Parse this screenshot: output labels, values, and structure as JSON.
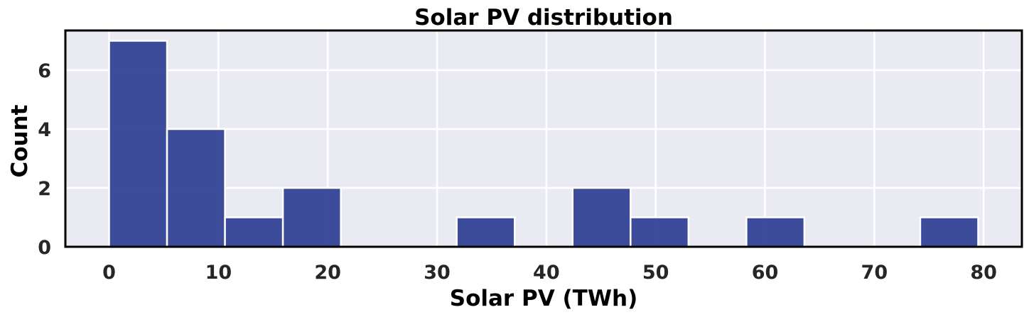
{
  "chart_data": {
    "type": "bar",
    "title": "Solar PV distribution",
    "xlabel": "Solar PV (TWh)",
    "ylabel": "Count",
    "xlim": [
      -4,
      83.5
    ],
    "ylim": [
      0,
      7.35
    ],
    "xticks": [
      0,
      10,
      20,
      30,
      40,
      50,
      60,
      70,
      80
    ],
    "yticks": [
      0,
      2,
      4,
      6
    ],
    "bins": [
      {
        "start": 0.0,
        "end": 5.3,
        "count": 7
      },
      {
        "start": 5.3,
        "end": 10.6,
        "count": 4
      },
      {
        "start": 10.6,
        "end": 15.9,
        "count": 1
      },
      {
        "start": 15.9,
        "end": 21.2,
        "count": 2
      },
      {
        "start": 21.2,
        "end": 26.5,
        "count": 0
      },
      {
        "start": 26.5,
        "end": 31.8,
        "count": 0
      },
      {
        "start": 31.8,
        "end": 37.1,
        "count": 1
      },
      {
        "start": 37.1,
        "end": 42.4,
        "count": 0
      },
      {
        "start": 42.4,
        "end": 47.7,
        "count": 2
      },
      {
        "start": 47.7,
        "end": 53.0,
        "count": 1
      },
      {
        "start": 53.0,
        "end": 58.3,
        "count": 0
      },
      {
        "start": 58.3,
        "end": 63.6,
        "count": 1
      },
      {
        "start": 63.6,
        "end": 68.9,
        "count": 0
      },
      {
        "start": 68.9,
        "end": 74.2,
        "count": 0
      },
      {
        "start": 74.2,
        "end": 79.5,
        "count": 1
      }
    ],
    "bar_color": "#2c3e94",
    "background": "#eaeaf2",
    "grid": true,
    "legend": "none"
  }
}
